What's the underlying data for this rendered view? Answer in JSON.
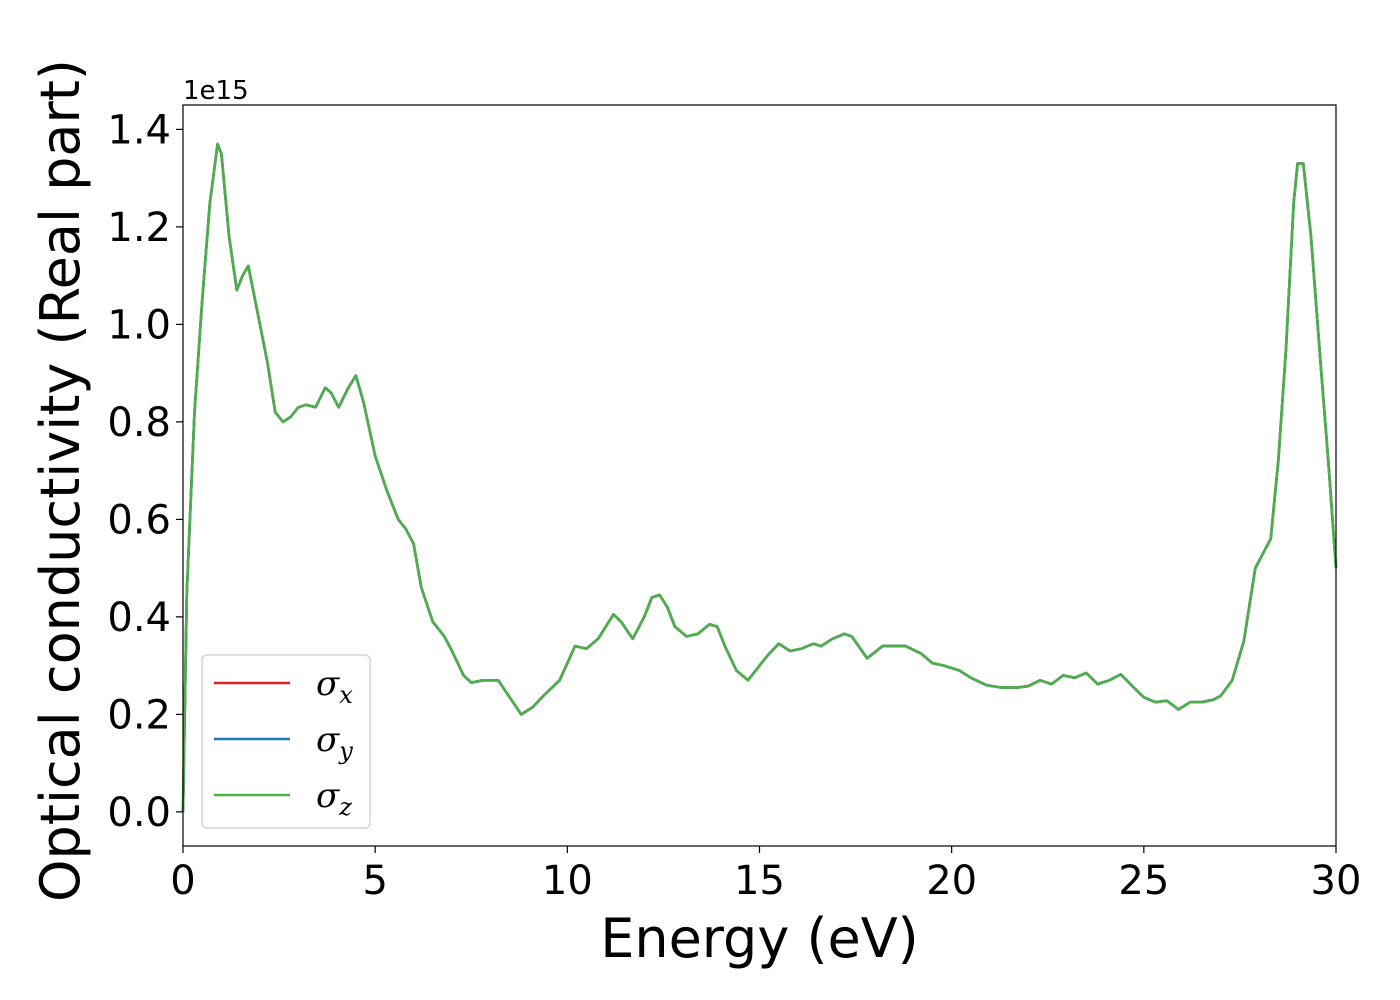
{
  "chart_data": {
    "type": "line",
    "xlabel": "Energy (eV)",
    "ylabel": "Optical conductivity (Real part)",
    "y_offset_label": "1e15",
    "xlim": [
      0,
      30
    ],
    "ylim": [
      -0.07,
      1.45
    ],
    "y_scale_factor": 1000000000000000.0,
    "x_ticks": [
      0,
      5,
      10,
      15,
      20,
      25,
      30
    ],
    "x_tick_labels": [
      "0",
      "5",
      "10",
      "15",
      "20",
      "25",
      "30"
    ],
    "y_ticks": [
      0.0,
      0.2,
      0.4,
      0.6,
      0.8,
      1.0,
      1.2,
      1.4
    ],
    "y_tick_labels": [
      "0.0",
      "0.2",
      "0.4",
      "0.6",
      "0.8",
      "1.0",
      "1.2",
      "1.4"
    ],
    "grid": false,
    "legend_position": "lower-left",
    "legend": [
      {
        "symbol": "σ",
        "subscript": "x",
        "color": "#d62728"
      },
      {
        "symbol": "σ",
        "subscript": "y",
        "color": "#1f77b4"
      },
      {
        "symbol": "σ",
        "subscript": "z",
        "color": "#4daf4a"
      }
    ],
    "x": [
      0,
      0.1,
      0.3,
      0.5,
      0.7,
      0.9,
      1.0,
      1.2,
      1.4,
      1.55,
      1.7,
      1.85,
      2.0,
      2.2,
      2.4,
      2.6,
      2.8,
      3.0,
      3.2,
      3.45,
      3.7,
      3.85,
      4.05,
      4.3,
      4.5,
      4.7,
      5.0,
      5.3,
      5.6,
      5.8,
      6.0,
      6.2,
      6.5,
      6.8,
      7.0,
      7.3,
      7.5,
      7.8,
      8.2,
      8.5,
      8.8,
      9.1,
      9.4,
      9.8,
      10.2,
      10.5,
      10.8,
      11.0,
      11.2,
      11.4,
      11.7,
      12.0,
      12.2,
      12.4,
      12.6,
      12.8,
      13.1,
      13.4,
      13.7,
      13.9,
      14.1,
      14.4,
      14.7,
      15.0,
      15.2,
      15.5,
      15.8,
      16.1,
      16.4,
      16.6,
      16.9,
      17.2,
      17.4,
      17.8,
      18.2,
      18.6,
      18.8,
      19.2,
      19.5,
      19.8,
      20.2,
      20.5,
      20.9,
      21.3,
      21.7,
      22.0,
      22.3,
      22.6,
      22.9,
      23.2,
      23.5,
      23.8,
      24.1,
      24.4,
      24.7,
      25.0,
      25.3,
      25.6,
      25.9,
      26.2,
      26.5,
      26.8,
      27.0,
      27.3,
      27.6,
      27.9,
      28.1,
      28.3,
      28.5,
      28.7,
      28.9,
      29.0,
      29.15,
      29.35,
      29.6,
      29.8,
      30.0
    ],
    "series": [
      {
        "color": "#d62728",
        "values": [
          0.0,
          0.45,
          0.82,
          1.05,
          1.25,
          1.37,
          1.35,
          1.18,
          1.07,
          1.1,
          1.12,
          1.06,
          1.0,
          0.92,
          0.82,
          0.8,
          0.81,
          0.83,
          0.835,
          0.83,
          0.87,
          0.86,
          0.83,
          0.87,
          0.895,
          0.84,
          0.73,
          0.66,
          0.6,
          0.58,
          0.55,
          0.46,
          0.39,
          0.36,
          0.33,
          0.28,
          0.265,
          0.27,
          0.27,
          0.235,
          0.2,
          0.215,
          0.24,
          0.27,
          0.34,
          0.335,
          0.355,
          0.38,
          0.405,
          0.39,
          0.355,
          0.4,
          0.44,
          0.445,
          0.42,
          0.38,
          0.36,
          0.365,
          0.385,
          0.38,
          0.34,
          0.29,
          0.27,
          0.3,
          0.32,
          0.345,
          0.33,
          0.335,
          0.345,
          0.34,
          0.355,
          0.365,
          0.36,
          0.315,
          0.34,
          0.34,
          0.34,
          0.325,
          0.305,
          0.3,
          0.29,
          0.275,
          0.26,
          0.255,
          0.255,
          0.258,
          0.27,
          0.262,
          0.28,
          0.275,
          0.285,
          0.262,
          0.27,
          0.282,
          0.258,
          0.235,
          0.225,
          0.228,
          0.21,
          0.225,
          0.225,
          0.23,
          0.238,
          0.27,
          0.35,
          0.5,
          0.53,
          0.56,
          0.72,
          0.95,
          1.25,
          1.33,
          1.33,
          1.18,
          0.92,
          0.72,
          0.5
        ]
      },
      {
        "color": "#1f77b4",
        "values": [
          0.0,
          0.45,
          0.82,
          1.05,
          1.25,
          1.37,
          1.35,
          1.18,
          1.07,
          1.1,
          1.12,
          1.06,
          1.0,
          0.92,
          0.82,
          0.8,
          0.81,
          0.83,
          0.835,
          0.83,
          0.87,
          0.86,
          0.83,
          0.87,
          0.895,
          0.84,
          0.73,
          0.66,
          0.6,
          0.58,
          0.55,
          0.46,
          0.39,
          0.36,
          0.33,
          0.28,
          0.265,
          0.27,
          0.27,
          0.235,
          0.2,
          0.215,
          0.24,
          0.27,
          0.34,
          0.335,
          0.355,
          0.38,
          0.405,
          0.39,
          0.355,
          0.4,
          0.44,
          0.445,
          0.42,
          0.38,
          0.36,
          0.365,
          0.385,
          0.38,
          0.34,
          0.29,
          0.27,
          0.3,
          0.32,
          0.345,
          0.33,
          0.335,
          0.345,
          0.34,
          0.355,
          0.365,
          0.36,
          0.315,
          0.34,
          0.34,
          0.34,
          0.325,
          0.305,
          0.3,
          0.29,
          0.275,
          0.26,
          0.255,
          0.255,
          0.258,
          0.27,
          0.262,
          0.28,
          0.275,
          0.285,
          0.262,
          0.27,
          0.282,
          0.258,
          0.235,
          0.225,
          0.228,
          0.21,
          0.225,
          0.225,
          0.23,
          0.238,
          0.27,
          0.35,
          0.5,
          0.53,
          0.56,
          0.72,
          0.95,
          1.25,
          1.33,
          1.33,
          1.18,
          0.92,
          0.72,
          0.5
        ]
      },
      {
        "color": "#4daf4a",
        "values": [
          0.0,
          0.45,
          0.82,
          1.05,
          1.25,
          1.37,
          1.35,
          1.18,
          1.07,
          1.1,
          1.12,
          1.06,
          1.0,
          0.92,
          0.82,
          0.8,
          0.81,
          0.83,
          0.835,
          0.83,
          0.87,
          0.86,
          0.83,
          0.87,
          0.895,
          0.84,
          0.73,
          0.66,
          0.6,
          0.58,
          0.55,
          0.46,
          0.39,
          0.36,
          0.33,
          0.28,
          0.265,
          0.27,
          0.27,
          0.235,
          0.2,
          0.215,
          0.24,
          0.27,
          0.34,
          0.335,
          0.355,
          0.38,
          0.405,
          0.39,
          0.355,
          0.4,
          0.44,
          0.445,
          0.42,
          0.38,
          0.36,
          0.365,
          0.385,
          0.38,
          0.34,
          0.29,
          0.27,
          0.3,
          0.32,
          0.345,
          0.33,
          0.335,
          0.345,
          0.34,
          0.355,
          0.365,
          0.36,
          0.315,
          0.34,
          0.34,
          0.34,
          0.325,
          0.305,
          0.3,
          0.29,
          0.275,
          0.26,
          0.255,
          0.255,
          0.258,
          0.27,
          0.262,
          0.28,
          0.275,
          0.285,
          0.262,
          0.27,
          0.282,
          0.258,
          0.235,
          0.225,
          0.228,
          0.21,
          0.225,
          0.225,
          0.23,
          0.238,
          0.27,
          0.35,
          0.5,
          0.53,
          0.56,
          0.72,
          0.95,
          1.25,
          1.33,
          1.33,
          1.18,
          0.92,
          0.72,
          0.5
        ]
      }
    ]
  }
}
